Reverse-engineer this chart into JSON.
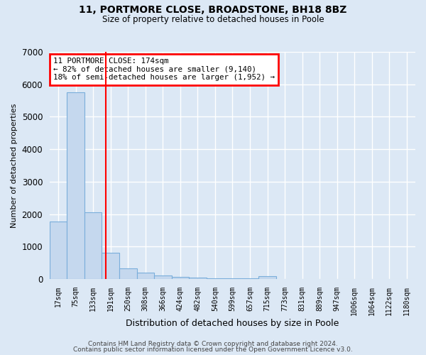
{
  "title1": "11, PORTMORE CLOSE, BROADSTONE, BH18 8BZ",
  "title2": "Size of property relative to detached houses in Poole",
  "xlabel": "Distribution of detached houses by size in Poole",
  "ylabel": "Number of detached properties",
  "bar_labels": [
    "17sqm",
    "75sqm",
    "133sqm",
    "191sqm",
    "250sqm",
    "308sqm",
    "366sqm",
    "424sqm",
    "482sqm",
    "540sqm",
    "599sqm",
    "657sqm",
    "715sqm",
    "773sqm",
    "831sqm",
    "889sqm",
    "947sqm",
    "1006sqm",
    "1064sqm",
    "1122sqm",
    "1180sqm"
  ],
  "bar_values": [
    1780,
    5750,
    2060,
    820,
    340,
    190,
    115,
    75,
    45,
    30,
    20,
    15,
    80,
    0,
    0,
    0,
    0,
    0,
    0,
    0,
    0
  ],
  "bar_color": "#c5d8ee",
  "bar_edgecolor": "#7aaedb",
  "vline_x": 2.72,
  "vline_color": "red",
  "annotation_text": "11 PORTMORE CLOSE: 174sqm\n← 82% of detached houses are smaller (9,140)\n18% of semi-detached houses are larger (1,952) →",
  "annotation_box_color": "white",
  "annotation_box_edgecolor": "red",
  "ylim": [
    0,
    7000
  ],
  "yticks": [
    0,
    1000,
    2000,
    3000,
    4000,
    5000,
    6000,
    7000
  ],
  "footer1": "Contains HM Land Registry data © Crown copyright and database right 2024.",
  "footer2": "Contains public sector information licensed under the Open Government Licence v3.0.",
  "background_color": "#dce8f5",
  "plot_bg_color": "#dce8f5",
  "grid_color": "#ffffff"
}
